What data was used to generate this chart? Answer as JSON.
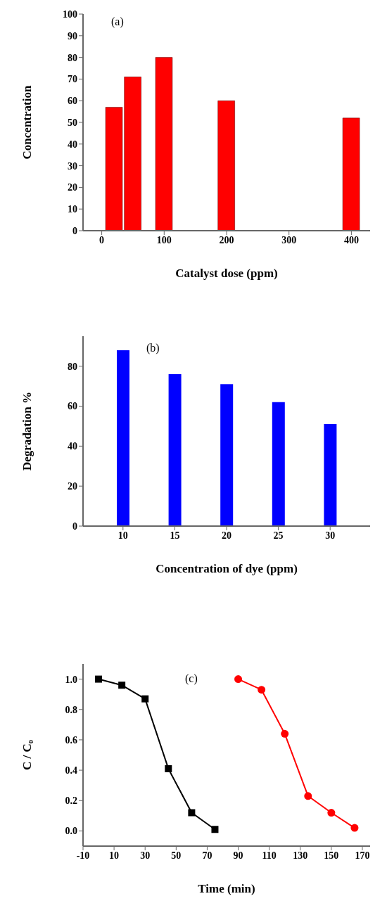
{
  "chart_data": [
    {
      "type": "bar",
      "xlabel": "Catalyst dose (ppm)",
      "ylabel": "Concentration",
      "annotations": [
        "(a)"
      ],
      "x": [
        20,
        50,
        100,
        200,
        400
      ],
      "values": [
        57,
        71,
        80,
        60,
        52
      ],
      "color": "#ff0000",
      "xlim": [
        -30,
        430
      ],
      "xticks": [
        0,
        100,
        200,
        300,
        400
      ],
      "ylim": [
        0,
        100
      ],
      "yticks": [
        0,
        10,
        20,
        30,
        40,
        50,
        60,
        70,
        80,
        90,
        100
      ]
    },
    {
      "type": "bar",
      "xlabel": "Concentration of dye (ppm)",
      "ylabel": "Degradation %",
      "annotations": [
        "(b)"
      ],
      "categories": [
        "10",
        "15",
        "20",
        "25",
        "30"
      ],
      "values": [
        88,
        76,
        71,
        62,
        51
      ],
      "color": "#0000ff",
      "ylim": [
        0,
        95
      ],
      "yticks": [
        0,
        20,
        40,
        60,
        80
      ]
    },
    {
      "type": "line",
      "xlabel": "Time (min)",
      "ylabel": "C / C₀",
      "annotations": [
        "(c)"
      ],
      "series": [
        {
          "color": "#000000",
          "marker": "square",
          "x": [
            0,
            15,
            30,
            45,
            60,
            75
          ],
          "values": [
            1.0,
            0.96,
            0.87,
            0.41,
            0.12,
            0.01
          ]
        },
        {
          "color": "#ff0000",
          "marker": "circle",
          "x": [
            90,
            105,
            120,
            135,
            150,
            165
          ],
          "values": [
            1.0,
            0.93,
            0.64,
            0.23,
            0.12,
            0.02
          ]
        }
      ],
      "xlim": [
        -10,
        175
      ],
      "xticks": [
        -10,
        10,
        30,
        50,
        70,
        90,
        110,
        130,
        150,
        170
      ],
      "ylim": [
        -0.1,
        1.1
      ],
      "yticks": [
        {
          "value": 0,
          "label": "0.0"
        },
        0.2,
        0.4,
        0.6,
        0.8,
        {
          "value": 1,
          "label": "1.0"
        }
      ]
    }
  ]
}
